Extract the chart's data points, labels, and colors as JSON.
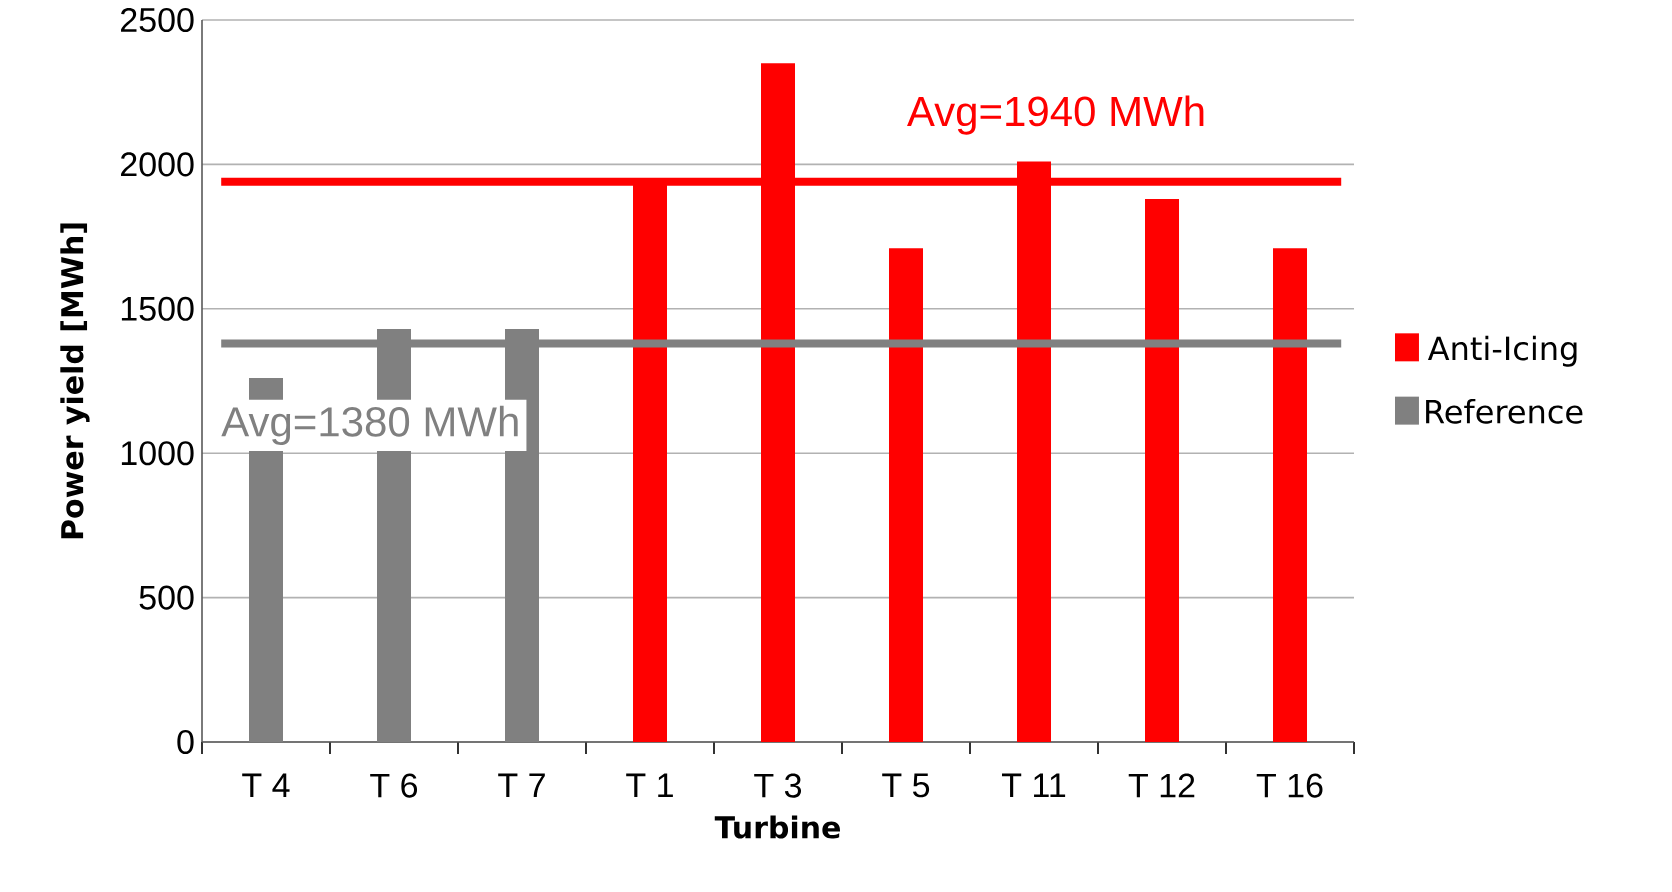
{
  "chart_data": {
    "type": "bar",
    "xlabel": "Turbine",
    "ylabel": "Power yield [MWh]",
    "categories": [
      "T 4",
      "T 6",
      "T 7",
      "T 1",
      "T 3",
      "T 5",
      "T 11",
      "T 12",
      "T 16"
    ],
    "series": [
      {
        "name": "Anti-Icing",
        "color": "#ff0000",
        "values": [
          null,
          null,
          null,
          1930,
          2350,
          1710,
          2010,
          1880,
          1710
        ]
      },
      {
        "name": "Reference",
        "color": "#808080",
        "values": [
          1260,
          1430,
          1430,
          null,
          null,
          null,
          null,
          null,
          null
        ]
      }
    ],
    "ylim": [
      0,
      2500
    ],
    "yticks": [
      0,
      500,
      1000,
      1500,
      2000,
      2500
    ],
    "grid": "y",
    "legend": "right",
    "ref_lines": [
      {
        "axis": "y",
        "value": 1940,
        "label": "Avg=1940 MWh",
        "color": "#ff0000"
      },
      {
        "axis": "y",
        "value": 1380,
        "label": "Avg=1380 MWh",
        "color": "#808080"
      }
    ]
  }
}
